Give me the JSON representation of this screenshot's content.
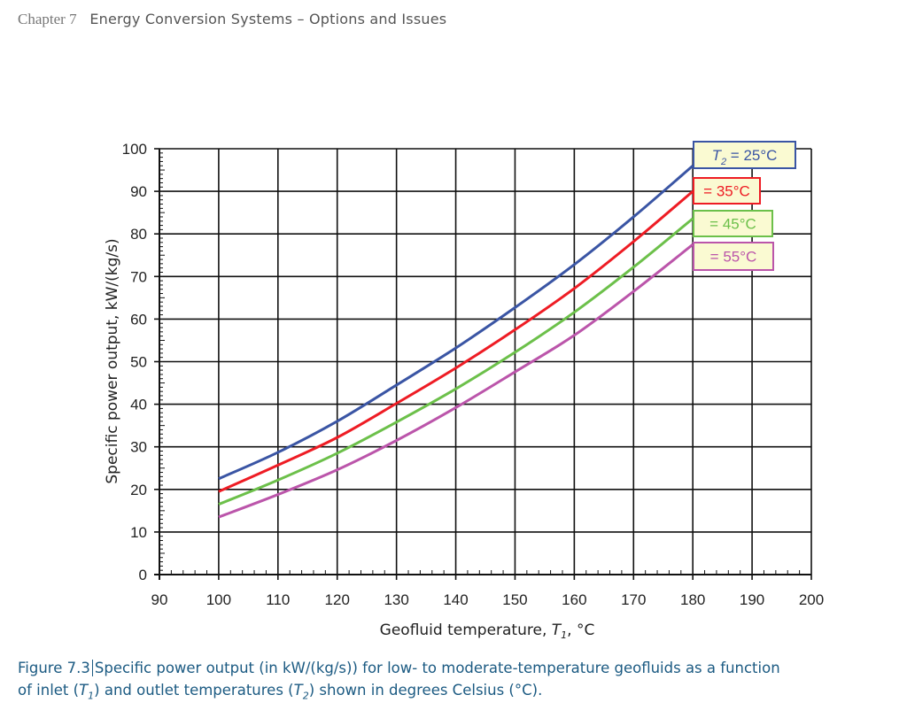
{
  "header": {
    "chapter": "Chapter 7",
    "title": "Energy Conversion Systems – Options and Issues"
  },
  "caption": {
    "figure_label": "Figure 7.3",
    "text_line1": "Specific power output (in kW/(kg/s)) for low- to moderate-temperature geofluids as a function",
    "text_line2_pre": "of inlet (",
    "t1": "T",
    "t1_sub": "1",
    "text_mid": ") and outlet temperatures (",
    "t2": "T",
    "t2_sub": "2",
    "text_post": ") shown in degrees Celsius (°C)."
  },
  "chart_data": {
    "type": "line",
    "title": "",
    "xlabel": "Geofluid temperature, T1, °C",
    "xlabel_pre": "Geofluid temperature, ",
    "xlabel_var": "T",
    "xlabel_sub": "1",
    "xlabel_post": ", °C",
    "ylabel": "Specific power output, kW/(kg/s)",
    "xlim": [
      90,
      200
    ],
    "ylim": [
      0,
      100
    ],
    "xticks": [
      90,
      100,
      110,
      120,
      130,
      140,
      150,
      160,
      170,
      180,
      190,
      200
    ],
    "yticks": [
      0,
      10,
      20,
      30,
      40,
      50,
      60,
      70,
      80,
      90,
      100
    ],
    "grid": true,
    "legend_position": "top-right",
    "x": [
      100,
      110,
      120,
      130,
      140,
      150,
      160,
      170,
      180
    ],
    "series": [
      {
        "name": "T2 = 25°C",
        "label": "= 25°C",
        "prefix": "T",
        "prefix_sub": "2",
        "color": "#3a55a4",
        "legend_border": "#3a55a4",
        "values": [
          22.5,
          28.7,
          36.0,
          44.5,
          53.2,
          62.7,
          72.8,
          84.0,
          96.0
        ]
      },
      {
        "name": "T2 = 35°C",
        "label": "= 35°C",
        "color": "#ee1c24",
        "legend_border": "#ee1c24",
        "values": [
          19.5,
          25.7,
          32.2,
          40.2,
          48.5,
          57.5,
          67.2,
          78.2,
          90.0
        ]
      },
      {
        "name": "T2 = 45°C",
        "label": "= 45°C",
        "color": "#6cc04a",
        "legend_border": "#6cc04a",
        "values": [
          16.5,
          22.2,
          28.5,
          35.8,
          43.6,
          52.2,
          61.6,
          72.2,
          83.6
        ]
      },
      {
        "name": "T2 = 55°C",
        "label": "= 55°C",
        "color": "#bb55aa",
        "legend_border": "#bb55aa",
        "values": [
          13.5,
          18.8,
          24.6,
          31.5,
          39.2,
          47.6,
          56.2,
          66.5,
          77.5
        ]
      }
    ],
    "legend_bg": "#fafad2"
  }
}
